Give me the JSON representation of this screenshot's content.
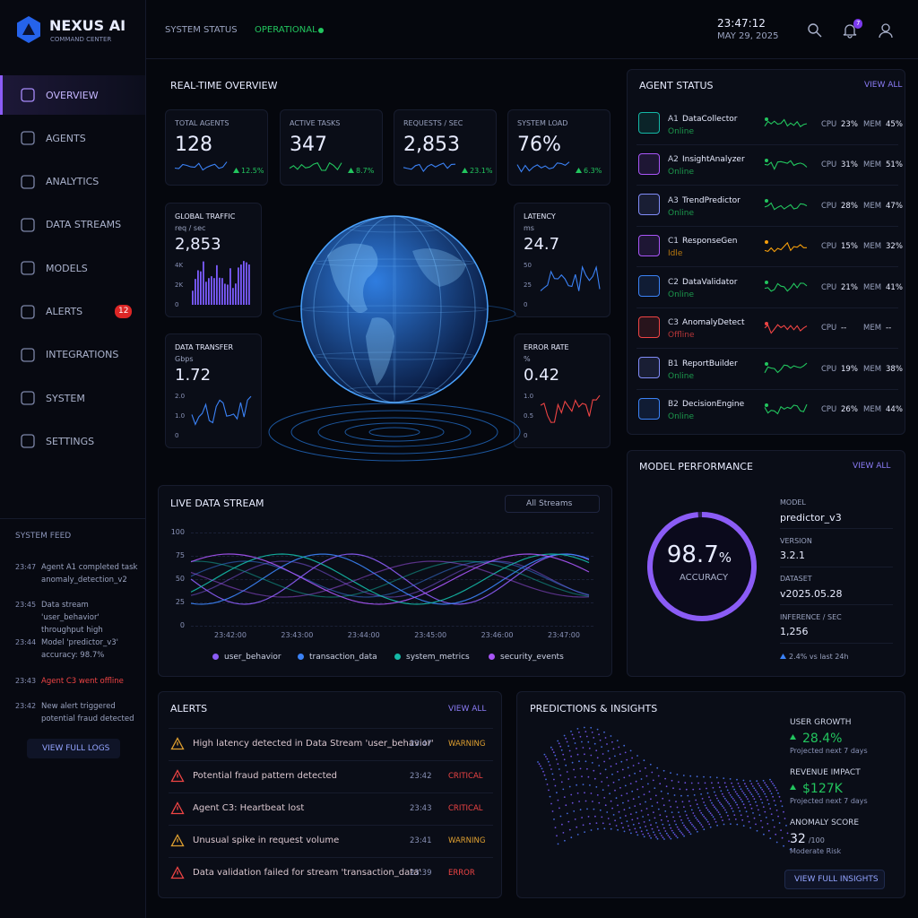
{
  "brand": {
    "name": "NEXUS AI",
    "subtitle": "COMMAND CENTER"
  },
  "topbar": {
    "status_label": "SYSTEM STATUS",
    "status": "OPERATIONAL",
    "time": "23:47:12",
    "date": "MAY 29, 2025",
    "notifications": "7"
  },
  "nav": [
    {
      "label": "OVERVIEW"
    },
    {
      "label": "AGENTS"
    },
    {
      "label": "ANALYTICS"
    },
    {
      "label": "DATA STREAMS"
    },
    {
      "label": "MODELS"
    },
    {
      "label": "ALERTS",
      "badge": "12"
    },
    {
      "label": "INTEGRATIONS"
    },
    {
      "label": "SYSTEM"
    },
    {
      "label": "SETTINGS"
    }
  ],
  "feed": {
    "title": "SYSTEM FEED",
    "items": [
      {
        "time": "23:47",
        "text": "Agent A1 completed task anomaly_detection_v2",
        "color": "#9aa3c0"
      },
      {
        "time": "23:45",
        "text": "Data stream 'user_behavior' throughput high",
        "color": "#9aa3c0"
      },
      {
        "time": "23:44",
        "text": "Model 'predictor_v3' accuracy: 98.7%",
        "color": "#9aa3c0"
      },
      {
        "time": "23:43",
        "text": "Agent C3 went offline",
        "color": "#ef4444"
      },
      {
        "time": "23:42",
        "text": "New alert triggered potential fraud detected",
        "color": "#9aa3c0"
      }
    ],
    "button": "VIEW FULL LOGS"
  },
  "overview": {
    "title": "REAL-TIME OVERVIEW",
    "kpis": [
      {
        "label": "TOTAL AGENTS",
        "value": "128",
        "change": "12.5%"
      },
      {
        "label": "ACTIVE TASKS",
        "value": "347",
        "change": "8.7%"
      },
      {
        "label": "REQUESTS / SEC",
        "value": "2,853",
        "change": "23.1%"
      },
      {
        "label": "SYSTEM LOAD",
        "value": "76%",
        "change": "6.3%"
      }
    ],
    "panels": [
      {
        "label": "GLOBAL TRAFFIC",
        "unit": "req / sec",
        "value": "2,853",
        "ticks": [
          "4K",
          "2K",
          "0"
        ],
        "chart": "bars",
        "color": "#7c5cff"
      },
      {
        "label": "LATENCY",
        "unit": "ms",
        "value": "24.7",
        "ticks": [
          "50",
          "25",
          "0"
        ],
        "chart": "line",
        "color": "#3b82f6"
      },
      {
        "label": "DATA TRANSFER",
        "unit": "Gbps",
        "value": "1.72",
        "ticks": [
          "2.0",
          "1.0",
          "0"
        ],
        "chart": "line",
        "color": "#3b82f6"
      },
      {
        "label": "ERROR RATE",
        "unit": "%",
        "value": "0.42",
        "ticks": [
          "1.0",
          "0.5",
          "0"
        ],
        "chart": "line",
        "color": "#ef4444"
      }
    ]
  },
  "agents": {
    "title": "AGENT STATUS",
    "link": "VIEW ALL",
    "cpu_label": "CPU",
    "mem_label": "MEM",
    "rows": [
      {
        "id": "A1",
        "name": "DataCollector",
        "state": "Online",
        "cpu": "23%",
        "mem": "45%",
        "color": "#22c55e",
        "icon": "#14b8a6"
      },
      {
        "id": "A2",
        "name": "InsightAnalyzer",
        "state": "Online",
        "cpu": "31%",
        "mem": "51%",
        "color": "#22c55e",
        "icon": "#a855f7"
      },
      {
        "id": "A3",
        "name": "TrendPredictor",
        "state": "Online",
        "cpu": "28%",
        "mem": "47%",
        "color": "#22c55e",
        "icon": "#818cf8"
      },
      {
        "id": "C1",
        "name": "ResponseGen",
        "state": "Idle",
        "cpu": "15%",
        "mem": "32%",
        "color": "#f59e0b",
        "icon": "#a855f7"
      },
      {
        "id": "C2",
        "name": "DataValidator",
        "state": "Online",
        "cpu": "21%",
        "mem": "41%",
        "color": "#22c55e",
        "icon": "#3b82f6"
      },
      {
        "id": "C3",
        "name": "AnomalyDetect",
        "state": "Offline",
        "cpu": "--",
        "mem": "--",
        "color": "#ef4444",
        "icon": "#ef4444"
      },
      {
        "id": "B1",
        "name": "ReportBuilder",
        "state": "Online",
        "cpu": "19%",
        "mem": "38%",
        "color": "#22c55e",
        "icon": "#818cf8"
      },
      {
        "id": "B2",
        "name": "DecisionEngine",
        "state": "Online",
        "cpu": "26%",
        "mem": "44%",
        "color": "#22c55e",
        "icon": "#3b82f6"
      }
    ]
  },
  "model": {
    "title": "MODEL PERFORMANCE",
    "link": "VIEW ALL",
    "accuracy": 98.7,
    "accuracy_unit": "%",
    "accuracy_label": "ACCURACY",
    "fields": [
      {
        "label": "MODEL",
        "value": "predictor_v3"
      },
      {
        "label": "VERSION",
        "value": "3.2.1"
      },
      {
        "label": "DATASET",
        "value": "v2025.05.28"
      },
      {
        "label": "INFERENCE / SEC",
        "value": "1,256"
      }
    ],
    "trend": "2.4% vs last 24h"
  },
  "stream": {
    "title": "LIVE DATA STREAM",
    "filter": "All Streams",
    "yticks": [
      "100",
      "75",
      "50",
      "25",
      "0"
    ],
    "xticks": [
      "23:42:00",
      "23:43:00",
      "23:44:00",
      "23:45:00",
      "23:46:00",
      "23:47:00"
    ],
    "legend": [
      {
        "name": "user_behavior",
        "color": "#8b5cf6"
      },
      {
        "name": "transaction_data",
        "color": "#3b82f6"
      },
      {
        "name": "system_metrics",
        "color": "#14b8a6"
      },
      {
        "name": "security_events",
        "color": "#a855f7"
      }
    ]
  },
  "alerts": {
    "title": "ALERTS",
    "link": "VIEW ALL",
    "items": [
      {
        "text": "High latency detected in Data Stream 'user_behavior'",
        "time": "23:47",
        "level": "WARNING",
        "color": "#e0a030"
      },
      {
        "text": "Potential fraud pattern detected",
        "time": "23:42",
        "level": "CRITICAL",
        "color": "#ef4444"
      },
      {
        "text": "Agent C3: Heartbeat lost",
        "time": "23:43",
        "level": "CRITICAL",
        "color": "#ef4444"
      },
      {
        "text": "Unusual spike in request volume",
        "time": "23:41",
        "level": "WARNING",
        "color": "#e0a030"
      },
      {
        "text": "Data validation failed for stream 'transaction_data'",
        "time": "23:39",
        "level": "ERROR",
        "color": "#ef4444"
      }
    ]
  },
  "insights": {
    "title": "PREDICTIONS & INSIGHTS",
    "metrics": [
      {
        "label": "USER GROWTH",
        "value": "28.4%",
        "note": "Projected next 7 days",
        "color": "#22c55e"
      },
      {
        "label": "REVENUE IMPACT",
        "value": "$127K",
        "note": "Projected next 7 days",
        "color": "#22c55e"
      },
      {
        "label": "ANOMALY SCORE",
        "value": "32",
        "unit": "/100",
        "note": "Moderate Risk",
        "color": "#e8ecff"
      }
    ],
    "button": "VIEW FULL INSIGHTS"
  }
}
